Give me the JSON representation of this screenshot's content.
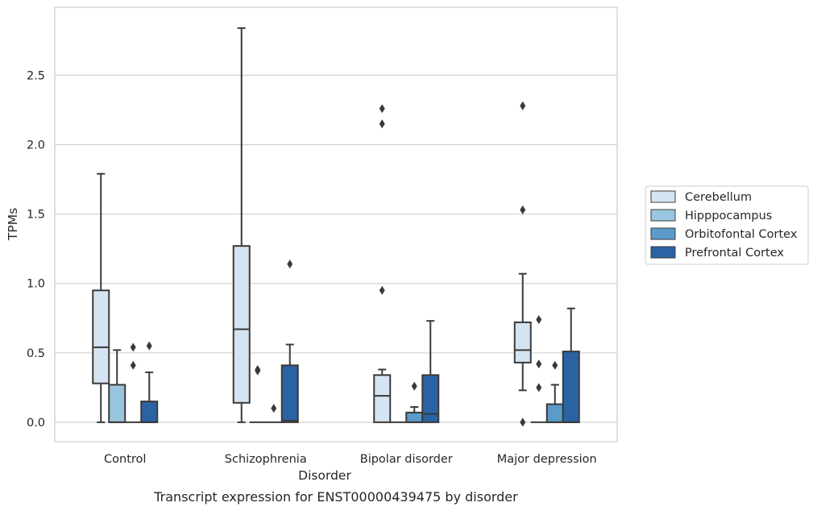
{
  "chart_data": {
    "type": "box",
    "title": "",
    "caption": "Transcript expression for ENST00000439475 by disorder",
    "xlabel": "Disorder",
    "ylabel": "TPMs",
    "ylim": [
      -0.14,
      2.99
    ],
    "yticks": [
      "0.0",
      "0.5",
      "1.0",
      "1.5",
      "2.0",
      "2.5"
    ],
    "ytick_values": [
      0.0,
      0.5,
      1.0,
      1.5,
      2.0,
      2.5
    ],
    "grid": "horizontal",
    "legend_position": "right",
    "categories": [
      "Control",
      "Schizophrenia",
      "Bipolar disorder",
      "Major depression"
    ],
    "series": [
      {
        "name": "Cerebellum",
        "color": "#d5e4f2",
        "boxes": [
          {
            "whislo": 0.0,
            "q1": 0.28,
            "med": 0.54,
            "q3": 0.95,
            "whishi": 1.79,
            "fliers": []
          },
          {
            "whislo": 0.0,
            "q1": 0.14,
            "med": 0.67,
            "q3": 1.27,
            "whishi": 2.84,
            "fliers": []
          },
          {
            "whislo": 0.0,
            "q1": 0.0,
            "med": 0.19,
            "q3": 0.34,
            "whishi": 0.38,
            "fliers": [
              0.95,
              2.15,
              2.26
            ]
          },
          {
            "whislo": 0.23,
            "q1": 0.43,
            "med": 0.52,
            "q3": 0.72,
            "whishi": 1.07,
            "fliers": [
              0.0,
              1.53,
              2.28
            ]
          }
        ]
      },
      {
        "name": "Hipppocampus",
        "color": "#9ac5df",
        "boxes": [
          {
            "whislo": 0.0,
            "q1": 0.0,
            "med": 0.0,
            "q3": 0.27,
            "whishi": 0.52,
            "fliers": []
          },
          {
            "whislo": 0.0,
            "q1": 0.0,
            "med": 0.0,
            "q3": 0.0,
            "whishi": 0.0,
            "fliers": [
              0.37,
              0.38
            ]
          },
          {
            "whislo": 0.0,
            "q1": 0.0,
            "med": 0.0,
            "q3": 0.0,
            "whishi": 0.0,
            "fliers": []
          },
          {
            "whislo": 0.0,
            "q1": 0.0,
            "med": 0.0,
            "q3": 0.0,
            "whishi": 0.0,
            "fliers": [
              0.25,
              0.42,
              0.74
            ]
          }
        ]
      },
      {
        "name": "Orbitofontal Cortex",
        "color": "#5b9bc9",
        "boxes": [
          {
            "whislo": 0.0,
            "q1": 0.0,
            "med": 0.0,
            "q3": 0.0,
            "whishi": 0.0,
            "fliers": [
              0.41,
              0.54
            ]
          },
          {
            "whislo": 0.0,
            "q1": 0.0,
            "med": 0.0,
            "q3": 0.0,
            "whishi": 0.0,
            "fliers": [
              0.1
            ]
          },
          {
            "whislo": 0.0,
            "q1": 0.0,
            "med": 0.0,
            "q3": 0.07,
            "whishi": 0.11,
            "fliers": [
              0.26
            ]
          },
          {
            "whislo": 0.0,
            "q1": 0.0,
            "med": 0.0,
            "q3": 0.13,
            "whishi": 0.27,
            "fliers": [
              0.41
            ]
          }
        ]
      },
      {
        "name": "Prefrontal Cortex",
        "color": "#2a63a3",
        "boxes": [
          {
            "whislo": 0.0,
            "q1": 0.0,
            "med": 0.0,
            "q3": 0.15,
            "whishi": 0.36,
            "fliers": [
              0.55
            ]
          },
          {
            "whislo": 0.0,
            "q1": 0.0,
            "med": 0.01,
            "q3": 0.41,
            "whishi": 0.56,
            "fliers": [
              1.14
            ]
          },
          {
            "whislo": 0.0,
            "q1": 0.0,
            "med": 0.06,
            "q3": 0.34,
            "whishi": 0.73,
            "fliers": []
          },
          {
            "whislo": 0.0,
            "q1": 0.0,
            "med": 0.0,
            "q3": 0.51,
            "whishi": 0.82,
            "fliers": []
          }
        ]
      }
    ]
  }
}
